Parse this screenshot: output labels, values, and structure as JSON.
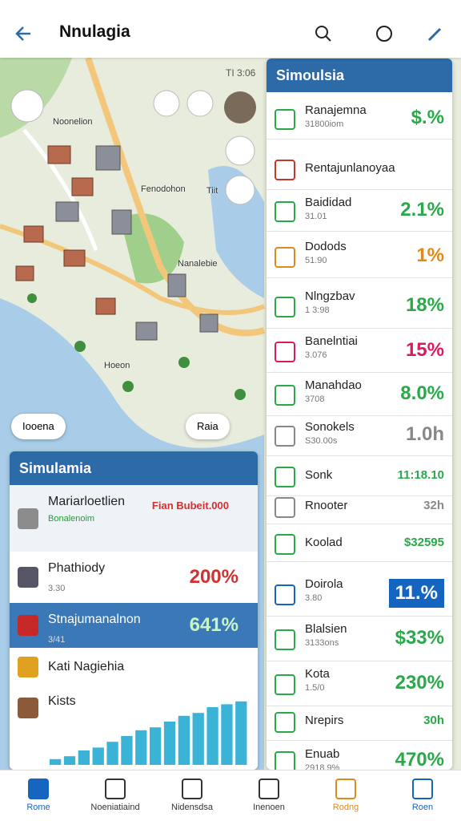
{
  "header": {
    "title": "Nnulagia"
  },
  "map": {
    "status": "TI 3:06",
    "labels": [
      "Noonelion",
      "Fenodohon",
      "Tiit",
      "Nanalebie",
      "Hoeon"
    ],
    "chips": [
      "Iooena",
      "Raia"
    ]
  },
  "right_panel": {
    "title": "Simoulsia",
    "items": [
      {
        "name": "Ranajemna",
        "sub": "31800iom",
        "value": "$.%",
        "color": "#2aa84a"
      },
      {
        "name": "Rentajunlanoyaa",
        "color": "#c0392b"
      },
      {
        "name": "Baididad",
        "sub": "31.01",
        "value": "2.1%",
        "color": "#2aa84a"
      },
      {
        "name": "Dodods",
        "sub": "51.90",
        "value": "1%",
        "color": "#e08a1e"
      },
      {
        "name": "Nlngzbav",
        "sub": "1 3:98",
        "value": "18%",
        "color": "#2aa84a"
      },
      {
        "name": "Banelntiai",
        "sub": "3.076",
        "value": "15%",
        "color": "#d81b60"
      },
      {
        "name": "Manahdao",
        "sub": "3708",
        "value": "8.0%",
        "color": "#2aa84a"
      },
      {
        "name": "Sonokels",
        "sub": "S30.00s",
        "value": "1.0h",
        "color": "#888888"
      },
      {
        "name": "Sonk",
        "value": "11:18.10",
        "color": "#2aa84a"
      },
      {
        "name": "Rnooter",
        "value": "32h",
        "color": "#888888"
      },
      {
        "name": "Koolad",
        "value": "$32595",
        "color": "#2aa84a"
      },
      {
        "name": "Doirola",
        "sub": "3.80",
        "value": "11.%",
        "color": "#1565c0"
      },
      {
        "name": "Blalsien",
        "sub": "3133ons",
        "value": "$33%",
        "color": "#2aa84a"
      },
      {
        "name": "Kota",
        "sub": "1.5/0",
        "value": "230%",
        "color": "#2aa84a"
      },
      {
        "name": "Nrepirs",
        "value": "30h",
        "color": "#2aa84a"
      },
      {
        "name": "Enuab",
        "sub": "2918.9%",
        "value": "470%",
        "color": "#2aa84a"
      }
    ]
  },
  "left_panel": {
    "title": "Simulamia",
    "items": [
      {
        "name": "Mariarloetlien",
        "sub": "Bonalenoim",
        "value": "Fian Bubeit.000",
        "color": "#d32f2f"
      },
      {
        "name": "Phathiody",
        "sub": "3.30",
        "value": "200%",
        "color": "#d32f2f"
      },
      {
        "name": "Stnajumanalnon",
        "sub": "3/41",
        "value": "641%",
        "color": "#c8f5c8"
      },
      {
        "name": "Kati Nagiehia"
      },
      {
        "name": "Kists"
      }
    ],
    "chart": {
      "values": [
        4,
        6,
        10,
        12,
        16,
        20,
        24,
        26,
        30,
        34,
        36,
        40,
        42,
        44
      ],
      "ylim": [
        0,
        50
      ],
      "color": "#3bb3d6"
    }
  },
  "nav": {
    "items": [
      "Rome",
      "Noeniatiaind",
      "Nidensdsa",
      "Inenoen",
      "Rodng",
      "Roen"
    ]
  }
}
